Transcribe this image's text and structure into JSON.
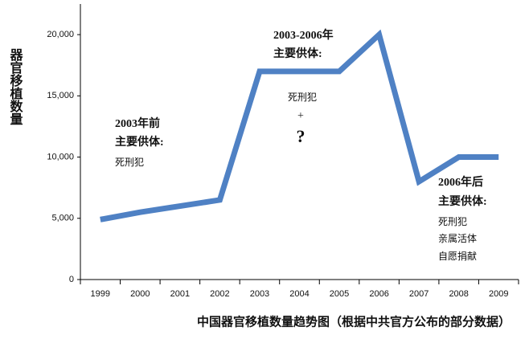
{
  "chart_data": {
    "type": "line",
    "y_label": "器官移植数量",
    "x_title": "中国器官移植数量趋势图（根据中共官方公布的部分数据）",
    "categories": [
      "1999",
      "2000",
      "2001",
      "2002",
      "2003",
      "2004",
      "2005",
      "2006",
      "2007",
      "2008",
      "2009"
    ],
    "values": [
      4900,
      5500,
      6000,
      6500,
      17000,
      17000,
      17000,
      20000,
      8000,
      10000,
      10000
    ],
    "color": "#4f81c4",
    "ylim": [
      0,
      22500
    ],
    "yticks": [
      0,
      {
        "value": 5000,
        "label": "5,000"
      },
      {
        "value": 10000,
        "label": "10,000"
      },
      {
        "value": 15000,
        "label": "15,000"
      },
      {
        "value": 20000,
        "label": "20,000"
      }
    ],
    "annotations": [
      {
        "title": "2003年前",
        "subtitle": "主要供体:",
        "items": [
          "死刑犯"
        ]
      },
      {
        "title": "2003-2006年",
        "subtitle": "主要供体:",
        "items": [
          "死刑犯",
          "+",
          "?"
        ]
      },
      {
        "title": "2006年后",
        "subtitle": "主要供体:",
        "items": [
          "死刑犯",
          "亲属活体",
          "自愿捐献"
        ]
      }
    ]
  }
}
